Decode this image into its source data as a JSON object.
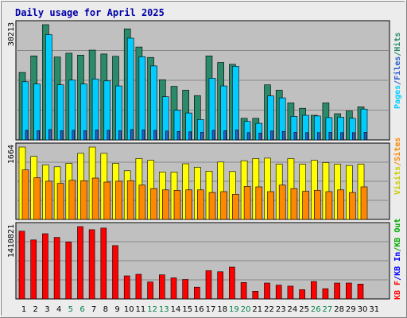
{
  "chart_data": {
    "type": "bar",
    "title": "Daily usage for April 2025",
    "categories": [
      "1",
      "2",
      "3",
      "4",
      "5",
      "6",
      "7",
      "8",
      "9",
      "10",
      "11",
      "12",
      "13",
      "14",
      "15",
      "16",
      "17",
      "18",
      "19",
      "20",
      "21",
      "22",
      "23",
      "24",
      "25",
      "26",
      "27",
      "28",
      "29",
      "30",
      "31"
    ],
    "weekend_days": [
      "5",
      "6",
      "12",
      "13",
      "19",
      "20",
      "26",
      "27"
    ],
    "panels": [
      {
        "max_label": "30213",
        "series": [
          {
            "name": "Hits",
            "color": "#2a8a6a",
            "values": [
              17500,
              21800,
              29900,
              21500,
              22500,
              22000,
              23300,
              22300,
              21700,
              28800,
              24100,
              21400,
              15600,
              13900,
              12900,
              11500,
              21800,
              20100,
              19600,
              5600,
              5600,
              14300,
              12900,
              9600,
              8200,
              6400,
              9600,
              6800,
              7500,
              8600,
              null
            ]
          },
          {
            "name": "Files",
            "color": "#00ccff",
            "values": [
              15100,
              14500,
              27300,
              14300,
              15500,
              14500,
              15800,
              15300,
              14000,
              26400,
              21600,
              19200,
              11200,
              7700,
              7000,
              5300,
              16000,
              14000,
              19100,
              4800,
              4300,
              11400,
              10900,
              6100,
              6400,
              6200,
              5800,
              5900,
              5600,
              8000,
              null
            ]
          },
          {
            "name": "Pages",
            "color": "#2b5fcb",
            "values": [
              2500,
              2400,
              2700,
              2400,
              2500,
              2400,
              2600,
              2500,
              2400,
              2700,
              2600,
              2500,
              2300,
              2200,
              2100,
              2000,
              2500,
              2400,
              2600,
              1900,
              1800,
              2300,
              2200,
              2000,
              1900,
              1900,
              2000,
              1900,
              1900,
              2000,
              null
            ]
          }
        ]
      },
      {
        "max_label": "1664",
        "series": [
          {
            "name": "Visits",
            "color": "#ffff00",
            "values": [
              1664,
              1450,
              1250,
              1210,
              1290,
              1520,
              1664,
              1520,
              1290,
              1120,
              1400,
              1360,
              1090,
              1090,
              1280,
              1200,
              1110,
              1320,
              1100,
              1350,
              1400,
              1410,
              1270,
              1400,
              1270,
              1360,
              1310,
              1270,
              1240,
              1270,
              null
            ]
          },
          {
            "name": "Sites",
            "color": "#ff8800",
            "values": [
              1140,
              960,
              880,
              830,
              900,
              890,
              950,
              860,
              880,
              890,
              790,
              710,
              680,
              670,
              680,
              680,
              620,
              640,
              580,
              760,
              750,
              640,
              790,
              710,
              650,
              670,
              640,
              680,
              620,
              750,
              null
            ]
          }
        ]
      },
      {
        "max_label": "1410821",
        "series": [
          {
            "name": "KB F",
            "color": "#ff0000",
            "values": [
              1320000,
              1150000,
              1270000,
              1200000,
              1110000,
              1410000,
              1350000,
              1380000,
              1040000,
              450000,
              480000,
              330000,
              470000,
              410000,
              380000,
              230000,
              550000,
              530000,
              620000,
              320000,
              150000,
              310000,
              270000,
              250000,
              180000,
              340000,
              200000,
              310000,
              310000,
              290000,
              null
            ]
          },
          {
            "name": "KB In",
            "color": "#0000ff",
            "values": []
          },
          {
            "name": "KB Out",
            "color": "#00aa00",
            "values": []
          }
        ]
      }
    ],
    "legend_right": [
      [
        {
          "text": "Pages",
          "color": "#00ccff"
        },
        {
          "text": "/",
          "color": "#2b5fcb"
        },
        {
          "text": "Files",
          "color": "#2b5fcb"
        },
        {
          "text": "/",
          "color": "#2a8a6a"
        },
        {
          "text": "Hits",
          "color": "#2a8a6a"
        }
      ],
      [
        {
          "text": "Visits",
          "color": "#cccc00"
        },
        {
          "text": "/",
          "color": "#ff8800"
        },
        {
          "text": "Sites",
          "color": "#ff8800"
        }
      ],
      [
        {
          "text": "KB F",
          "color": "#ff0000"
        },
        {
          "text": "/",
          "color": "#0000ff"
        },
        {
          "text": "KB In",
          "color": "#0000ff"
        },
        {
          "text": "/",
          "color": "#00aa00"
        },
        {
          "text": "KB Out",
          "color": "#00aa00"
        }
      ]
    ],
    "colors": {
      "background": "#ececec",
      "plot": "#c0c0c0",
      "title": "#0000aa",
      "weekday_label": "#000000",
      "weekend_label": "#00804a"
    }
  }
}
